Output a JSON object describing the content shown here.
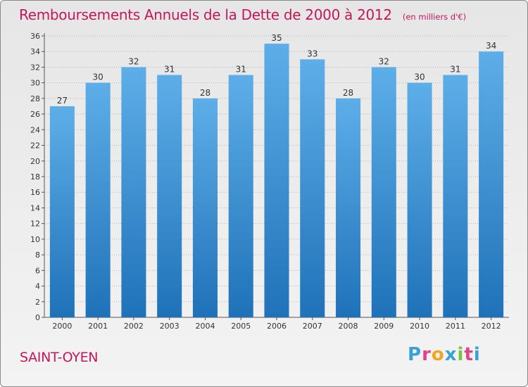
{
  "title": "Remboursements Annuels de la Dette de 2000 à 2012",
  "subtitle": "(en milliers d'€)",
  "commune": "SAINT-OYEN",
  "brand": "Proxiti",
  "colors": {
    "title": "#c2185b",
    "bar_top": "#5daee8",
    "bar_bottom": "#1f72b8",
    "brand_letters": [
      "#3aa0d8",
      "#e0418a",
      "#f2a61f",
      "#3aa0d8",
      "#7cc242",
      "#e0418a",
      "#3aa0d8"
    ]
  },
  "chart_data": {
    "type": "bar",
    "title": "Remboursements Annuels de la Dette de 2000 à 2012",
    "subtitle": "(en milliers d'€)",
    "categories": [
      "2000",
      "2001",
      "2002",
      "2003",
      "2004",
      "2005",
      "2006",
      "2007",
      "2008",
      "2009",
      "2010",
      "2011",
      "2012"
    ],
    "values": [
      27,
      30,
      32,
      31,
      28,
      31,
      35,
      33,
      28,
      32,
      30,
      31,
      34
    ],
    "ylim": [
      0,
      36
    ],
    "yticks": [
      0,
      2,
      4,
      6,
      8,
      10,
      12,
      14,
      16,
      18,
      20,
      22,
      24,
      26,
      28,
      30,
      32,
      34,
      36
    ],
    "grid": true,
    "data_labels": true
  }
}
